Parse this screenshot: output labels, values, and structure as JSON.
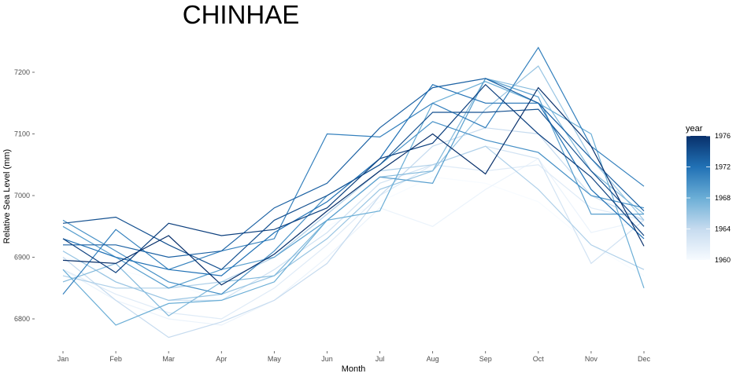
{
  "chart_data": {
    "type": "line",
    "title": "CHINHAE",
    "xlabel": "Month",
    "ylabel": "Relative Sea Level (mm)",
    "categories": [
      "Jan",
      "Feb",
      "Mar",
      "Apr",
      "May",
      "Jun",
      "Jul",
      "Aug",
      "Sep",
      "Oct",
      "Nov",
      "Dec"
    ],
    "ylim": [
      6755,
      7255
    ],
    "yticks": [
      6800,
      6900,
      7000,
      7100,
      7200
    ],
    "ytick_labels": [
      "6800",
      "6900",
      "7000",
      "7100",
      "7200"
    ],
    "grid": false,
    "legend": {
      "title": "year",
      "type": "colorbar",
      "placement": "right",
      "range": [
        1960,
        1976
      ],
      "ticks": [
        1960,
        1964,
        1968,
        1972,
        1976
      ],
      "tick_labels": [
        "1960",
        "1964",
        "1968",
        "1972",
        "1976"
      ],
      "color_low": "#f7fbff",
      "color_high": "#08306b"
    },
    "series": [
      {
        "year": 1960,
        "values": [
          6900,
          6880,
          6860,
          6830,
          6870,
          6950,
          6990,
          7030,
          7020,
          6990,
          6920,
          6870
        ]
      },
      {
        "year": 1961,
        "values": [
          6880,
          6830,
          6800,
          6790,
          6830,
          6900,
          6980,
          6950,
          7010,
          7060,
          6940,
          6960
        ]
      },
      {
        "year": 1962,
        "values": [
          6880,
          6840,
          6810,
          6800,
          6850,
          6920,
          7000,
          7050,
          7040,
          7050,
          6980,
          6960
        ]
      },
      {
        "year": 1963,
        "values": [
          6910,
          6860,
          6830,
          6830,
          6880,
          6940,
          7020,
          7050,
          7080,
          7060,
          6890,
          6960
        ]
      },
      {
        "year": 1964,
        "values": [
          6900,
          6830,
          6770,
          6795,
          6830,
          6890,
          7000,
          7080,
          7110,
          7100,
          7000,
          6960
        ]
      },
      {
        "year": 1965,
        "values": [
          6870,
          6850,
          6850,
          6860,
          6900,
          6970,
          7040,
          7050,
          7080,
          7010,
          6920,
          6880
        ]
      },
      {
        "year": 1966,
        "values": [
          6910,
          6860,
          6830,
          6840,
          6870,
          6930,
          7010,
          7040,
          7140,
          7210,
          7060,
          6960
        ]
      },
      {
        "year": 1967,
        "values": [
          6860,
          6890,
          6805,
          6860,
          6870,
          6960,
          7030,
          7040,
          7190,
          7170,
          7040,
          6970
        ]
      },
      {
        "year": 1968,
        "values": [
          6880,
          6790,
          6825,
          6830,
          6860,
          6960,
          6975,
          7150,
          7185,
          7150,
          7100,
          6850
        ]
      },
      {
        "year": 1969,
        "values": [
          6950,
          6900,
          6850,
          6880,
          6900,
          6960,
          7030,
          7020,
          7190,
          7160,
          6970,
          6970
        ]
      },
      {
        "year": 1970,
        "values": [
          6960,
          6910,
          6860,
          6840,
          6910,
          7000,
          7050,
          7120,
          7090,
          7070,
          7000,
          6980
        ]
      },
      {
        "year": 1971,
        "values": [
          6840,
          6945,
          6880,
          6910,
          6930,
          7100,
          7095,
          7150,
          7110,
          7240,
          7080,
          7015
        ]
      },
      {
        "year": 1972,
        "values": [
          6930,
          6900,
          6880,
          6870,
          6940,
          6990,
          7060,
          7180,
          7150,
          7150,
          7010,
          6930
        ]
      },
      {
        "year": 1973,
        "values": [
          6920,
          6920,
          6900,
          6910,
          6980,
          7020,
          7110,
          7175,
          7190,
          7150,
          7060,
          6975
        ]
      },
      {
        "year": 1974,
        "values": [
          6955,
          6965,
          6920,
          6880,
          6960,
          7000,
          7050,
          7135,
          7135,
          7140,
          7040,
          6950
        ]
      },
      {
        "year": 1975,
        "values": [
          6930,
          6875,
          6955,
          6935,
          6945,
          6980,
          7060,
          7085,
          7180,
          7100,
          7030,
          6935
        ]
      },
      {
        "year": 1976,
        "values": [
          6895,
          6890,
          6935,
          6855,
          6905,
          6975,
          7040,
          7100,
          7035,
          7175,
          7080,
          6918
        ]
      }
    ]
  }
}
